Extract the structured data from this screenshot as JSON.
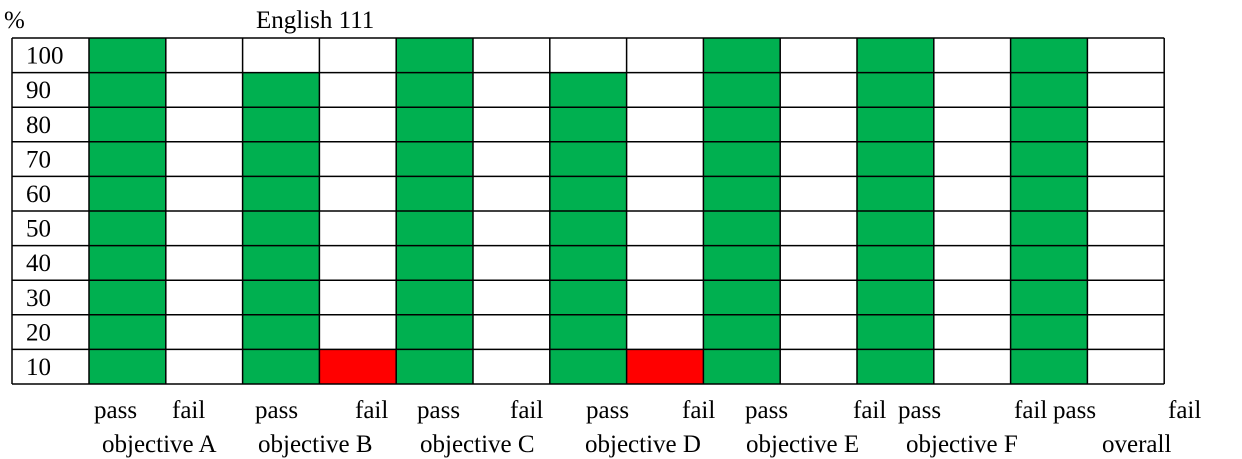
{
  "chart_data": {
    "type": "bar",
    "title": "English 111",
    "ylabel": "%",
    "xlabel": "",
    "y_ticks": [
      100,
      90,
      80,
      70,
      60,
      50,
      40,
      30,
      20,
      10
    ],
    "ylim": [
      0,
      100
    ],
    "grid": true,
    "categories": [
      "pass",
      "fail",
      "pass",
      "fail",
      "pass",
      "fail",
      "pass",
      "fail",
      "pass",
      "fail",
      "pass",
      "fail",
      "pass",
      "fail"
    ],
    "groups": [
      "objective A",
      "objective B",
      "objective C",
      "objective D",
      "objective E",
      "objective F",
      "overall"
    ],
    "values": [
      100,
      0,
      90,
      10,
      100,
      0,
      90,
      10,
      100,
      0,
      100,
      0,
      100,
      0
    ],
    "colors": {
      "pass": "#00b050",
      "fail": "#ff0000",
      "grid": "#000000",
      "background": "#ffffff"
    }
  }
}
